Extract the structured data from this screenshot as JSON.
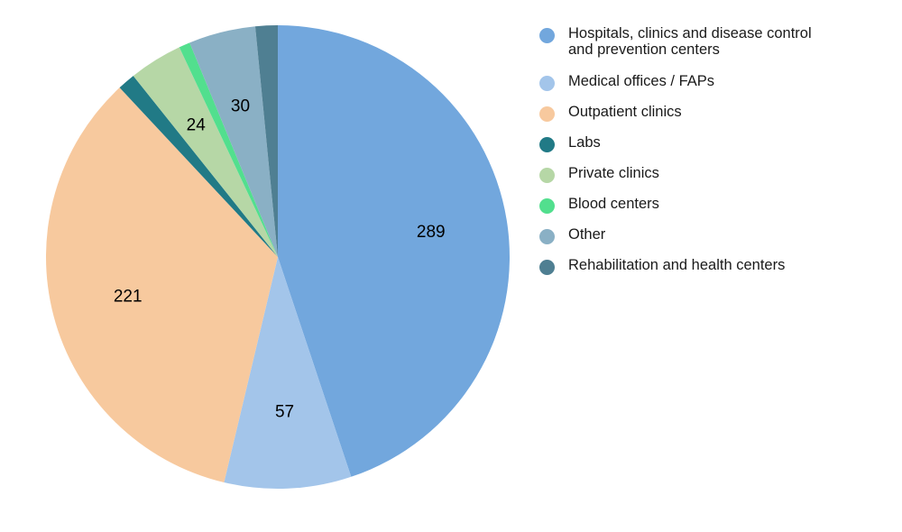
{
  "chart_data": {
    "type": "pie",
    "title": "",
    "slices": [
      {
        "label": "Hospitals, clinics and disease control and prevention centers",
        "value": 289,
        "color": "#72A7DD",
        "data_label": "289"
      },
      {
        "label": "Medical offices / FAPs",
        "value": 57,
        "color": "#A3C5EA",
        "data_label": "57"
      },
      {
        "label": "Outpatient clinics",
        "value": 221,
        "color": "#F7C99E",
        "data_label": "221"
      },
      {
        "label": "Labs",
        "value": 8,
        "color": "#217A86",
        "data_label": ""
      },
      {
        "label": "Private clinics",
        "value": 24,
        "color": "#B6D7A6",
        "data_label": "24"
      },
      {
        "label": "Blood centers",
        "value": 5,
        "color": "#52DF8E",
        "data_label": ""
      },
      {
        "label": "Other",
        "value": 30,
        "color": "#8AB0C5",
        "data_label": "30"
      },
      {
        "label": "Rehabilitation and health centers",
        "value": 10,
        "color": "#4F7F92",
        "data_label": ""
      }
    ],
    "legend_position": "right",
    "start_angle": "top",
    "direction": "clockwise"
  }
}
